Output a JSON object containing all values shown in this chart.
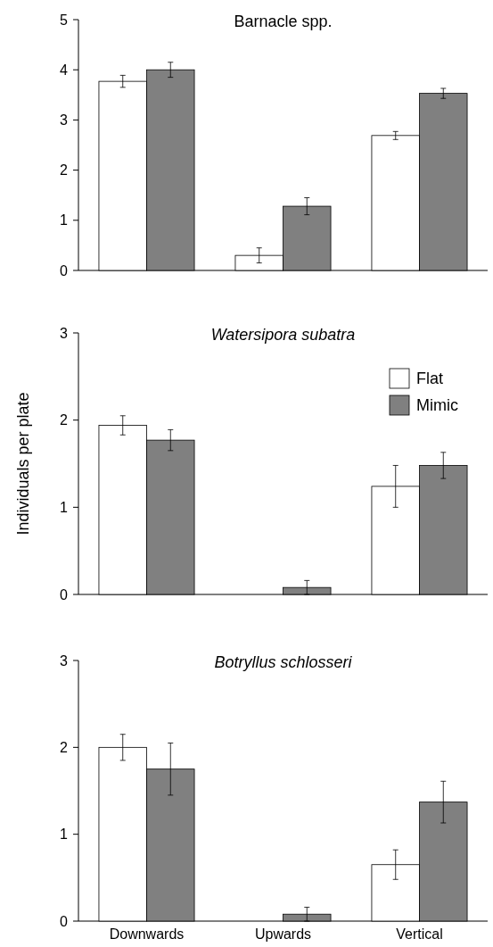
{
  "chart_data": [
    {
      "type": "bar",
      "title": "Barnacle spp.",
      "ylim": [
        0,
        5
      ],
      "yticks": [
        0,
        1,
        2,
        3,
        4,
        5
      ],
      "tick_labels": "y",
      "legend": false,
      "grid": false,
      "series": [
        {
          "color": "#ffffff",
          "values": [
            3.77,
            0.3,
            2.69
          ],
          "errors": [
            0.12,
            0.15,
            0.08
          ]
        },
        {
          "color": "#808080",
          "values": [
            4.0,
            1.28,
            3.53
          ],
          "errors": [
            0.15,
            0.17,
            0.1
          ]
        }
      ]
    },
    {
      "type": "bar",
      "title": "Watersipora subatra",
      "ylabel": "Individuals per plate",
      "ylim": [
        0,
        3
      ],
      "yticks": [
        0,
        1,
        2,
        3
      ],
      "tick_labels": "y",
      "legend": "top right",
      "grid": false,
      "series": [
        {
          "name": "Flat",
          "color": "#ffffff",
          "values": [
            1.94,
            0,
            1.24
          ],
          "errors": [
            0.11,
            null,
            0.24
          ]
        },
        {
          "name": "Mimic",
          "color": "#808080",
          "values": [
            1.77,
            0.08,
            1.48
          ],
          "errors": [
            0.12,
            0.08,
            0.15
          ]
        }
      ]
    },
    {
      "type": "bar",
      "title": "Botryllus schlosseri",
      "categories": [
        "Downwards",
        "Upwards",
        "Vertical"
      ],
      "ylim": [
        0,
        3
      ],
      "yticks": [
        0,
        1,
        2,
        3
      ],
      "legend": false,
      "grid": false,
      "series": [
        {
          "color": "#ffffff",
          "values": [
            2.0,
            0,
            0.65
          ],
          "errors": [
            0.15,
            null,
            0.17
          ]
        },
        {
          "color": "#808080",
          "values": [
            1.75,
            0.08,
            1.37
          ],
          "errors": [
            0.3,
            0.08,
            0.24
          ]
        }
      ]
    }
  ]
}
